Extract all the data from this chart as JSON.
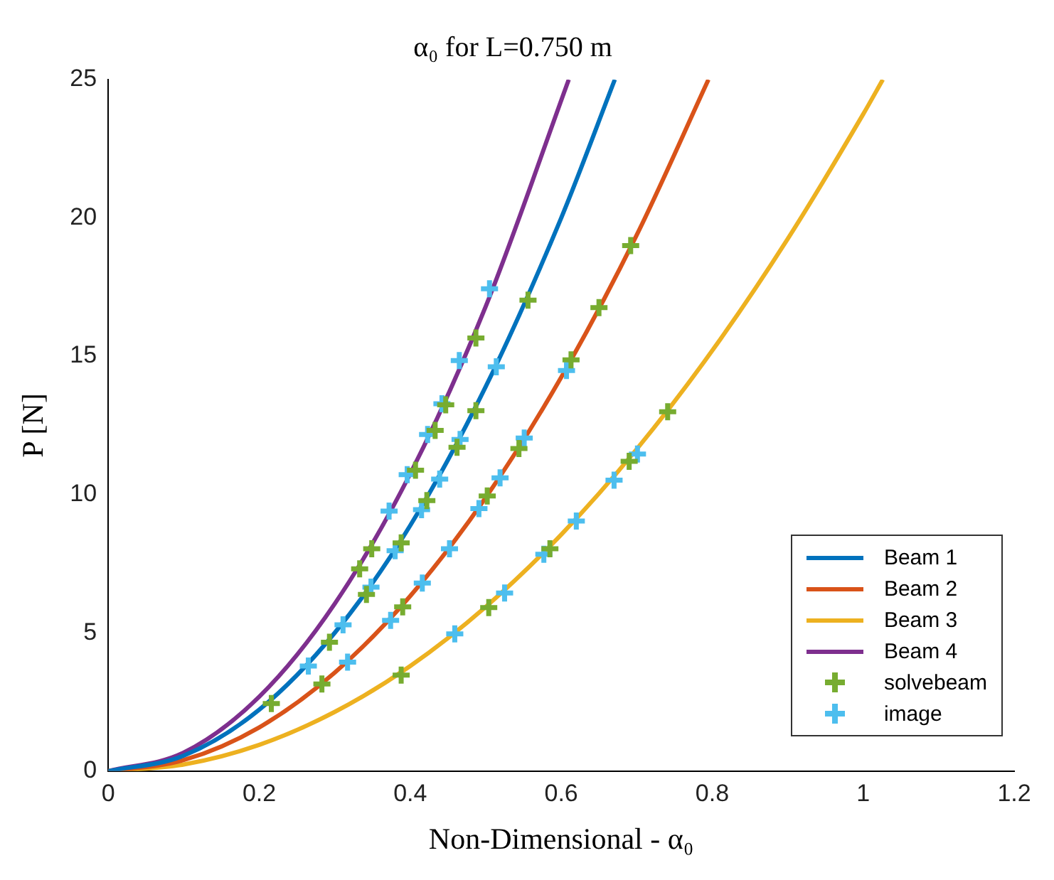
{
  "chart_data": {
    "type": "line",
    "title": "α₀ for L=0.750 m",
    "xlabel": "Non-Dimensional - α₀",
    "ylabel": "P [N]",
    "xlim": [
      0,
      1.2
    ],
    "xticks": [
      0,
      0.2,
      0.4,
      0.6,
      0.8,
      1,
      1.2
    ],
    "ylim": [
      0,
      25
    ],
    "yticks": [
      0,
      5,
      10,
      15,
      20,
      25
    ],
    "grid": false,
    "legend": "bottom right",
    "marker": "none",
    "line_style": "solid",
    "series": [
      {
        "name": "Beam 1",
        "color": "#0072bd",
        "x": [
          0,
          0.1,
          0.2,
          0.3,
          0.4,
          0.5,
          0.6,
          0.671
        ],
        "values": [
          0,
          0.56,
          2.22,
          5.0,
          8.88,
          13.9,
          20.0,
          25
        ]
      },
      {
        "name": "Beam 2",
        "color": "#d95319",
        "x": [
          0,
          0.1,
          0.2,
          0.3,
          0.4,
          0.5,
          0.6,
          0.7,
          0.795
        ],
        "values": [
          0,
          0.4,
          1.58,
          3.56,
          6.33,
          9.89,
          14.24,
          19.38,
          25
        ]
      },
      {
        "name": "Beam 3",
        "color": "#edb120",
        "x": [
          0,
          0.1,
          0.2,
          0.3,
          0.4,
          0.5,
          0.6,
          0.7,
          0.8,
          0.9,
          1.0,
          1.026
        ],
        "values": [
          0,
          0.24,
          0.95,
          2.14,
          3.8,
          5.94,
          8.55,
          11.64,
          15.2,
          19.24,
          23.75,
          25
        ]
      },
      {
        "name": "Beam 4",
        "color": "#7e2f8e",
        "x": [
          0,
          0.1,
          0.2,
          0.3,
          0.4,
          0.5,
          0.61
        ],
        "values": [
          0,
          0.67,
          2.69,
          6.05,
          10.75,
          16.8,
          25
        ]
      },
      {
        "name": "solvebeam",
        "type": "scatter",
        "marker": "cross",
        "color": "#77ac30",
        "x": [
          0.388,
          0.504,
          0.585,
          0.69,
          0.741,
          0.283,
          0.39,
          0.502,
          0.544,
          0.613,
          0.65,
          0.692,
          0.216,
          0.293,
          0.342,
          0.388,
          0.422,
          0.462,
          0.487,
          0.556,
          0.333,
          0.349,
          0.407,
          0.433,
          0.447,
          0.487
        ],
        "values": [
          3.47,
          5.91,
          8.04,
          11.2,
          12.99,
          3.15,
          5.94,
          9.95,
          11.66,
          14.87,
          16.76,
          19.0,
          2.44,
          4.66,
          6.39,
          8.25,
          9.78,
          11.71,
          13.03,
          17.03,
          7.31,
          8.04,
          10.88,
          12.32,
          13.24,
          15.66
        ]
      },
      {
        "name": "image",
        "type": "scatter",
        "marker": "cross",
        "color": "#4dbeee",
        "x": [
          0.459,
          0.525,
          0.577,
          0.62,
          0.67,
          0.701,
          0.317,
          0.374,
          0.416,
          0.452,
          0.491,
          0.519,
          0.551,
          0.607,
          0.265,
          0.311,
          0.348,
          0.38,
          0.415,
          0.439,
          0.466,
          0.514,
          0.372,
          0.396,
          0.423,
          0.442,
          0.465,
          0.505
        ],
        "values": [
          4.96,
          6.44,
          7.84,
          9.04,
          10.52,
          11.46,
          3.94,
          5.45,
          6.8,
          8.04,
          9.49,
          10.6,
          12.04,
          14.48,
          3.8,
          5.29,
          6.65,
          7.97,
          9.45,
          10.56,
          11.99,
          14.62,
          9.4,
          10.72,
          12.17,
          13.28,
          14.84,
          17.44
        ]
      }
    ]
  }
}
